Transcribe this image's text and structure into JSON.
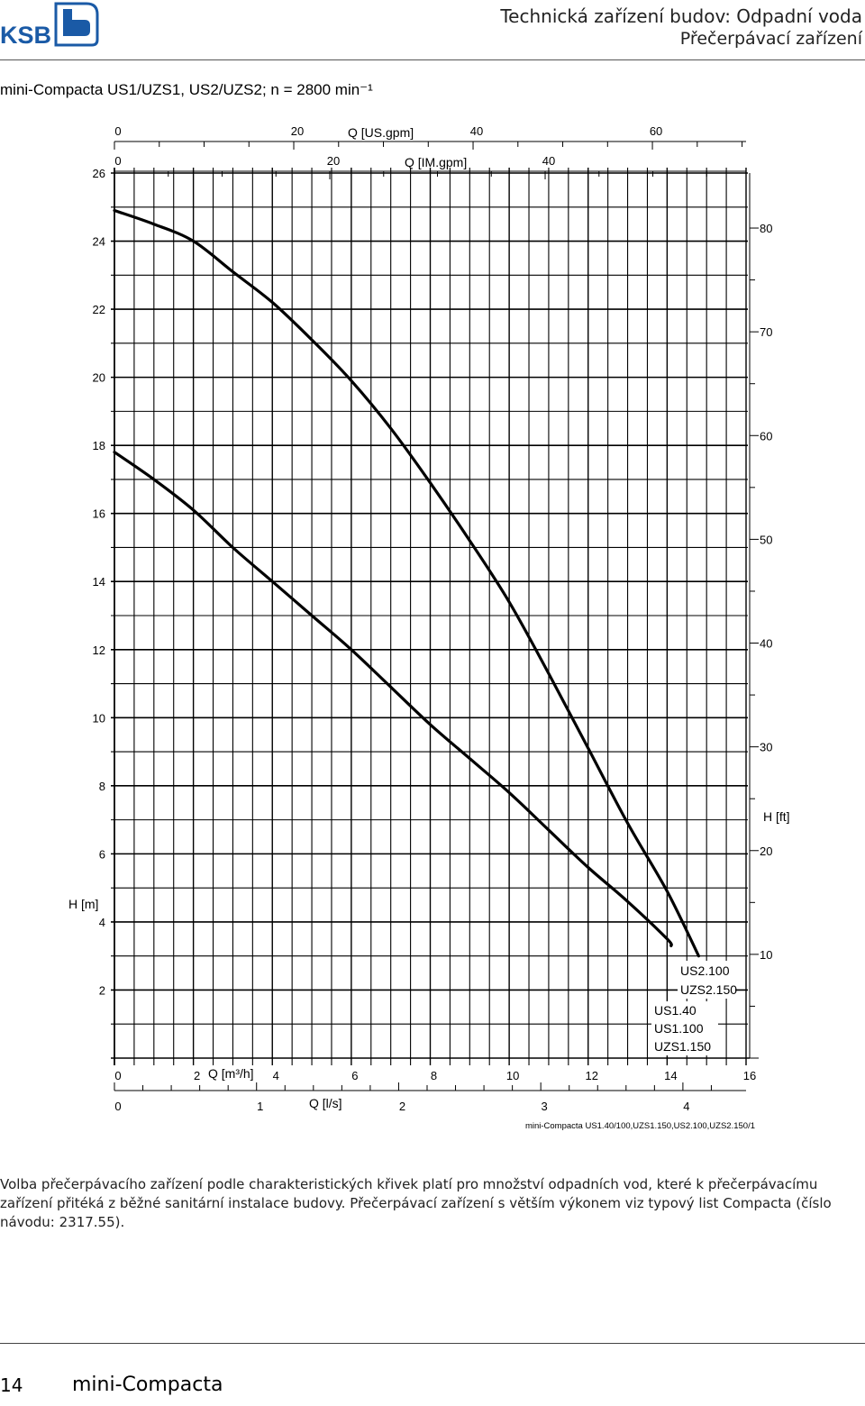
{
  "header": {
    "logo": "KSB",
    "title": "Technická zařízení budov: Odpadní voda",
    "subtitle": "Přečerpávací zařízení"
  },
  "chart_title": "mini-Compacta US1/UZS1, US2/UZS2; n = 2800 min⁻¹",
  "chart_data": {
    "type": "line",
    "x_label": "Q [m³/h]",
    "x_range": [
      0,
      16
    ],
    "x_ticks": [
      0,
      2,
      4,
      6,
      8,
      10,
      12,
      14,
      16
    ],
    "y_label": "H [m]",
    "y_range": [
      0,
      26
    ],
    "y_ticks": [
      2,
      4,
      6,
      8,
      10,
      12,
      14,
      16,
      18,
      20,
      22,
      24,
      26
    ],
    "secondary_axes": {
      "us_gpm": {
        "label": "Q [US.gpm]",
        "ticks": [
          0,
          20,
          40,
          60
        ]
      },
      "im_gpm": {
        "label": "Q [IM.gpm]",
        "ticks": [
          0,
          20,
          40
        ]
      },
      "ls": {
        "label": "Q [l/s]",
        "ticks": [
          0,
          1,
          2,
          3,
          4
        ]
      },
      "ft": {
        "label": "H [ft]",
        "ticks": [
          10,
          20,
          30,
          40,
          50,
          60,
          70,
          80
        ]
      }
    },
    "grid": true,
    "series": [
      {
        "name": "US2.100 / UZS2.150",
        "labels": [
          "US2.100",
          "UZS2.150"
        ],
        "points": [
          [
            0,
            24.9
          ],
          [
            1,
            24.5
          ],
          [
            2,
            24.0
          ],
          [
            3,
            23.1
          ],
          [
            4,
            22.2
          ],
          [
            5,
            21.1
          ],
          [
            6,
            19.9
          ],
          [
            7,
            18.5
          ],
          [
            8,
            16.9
          ],
          [
            9,
            15.2
          ],
          [
            10,
            13.4
          ],
          [
            11,
            11.3
          ],
          [
            12,
            9.1
          ],
          [
            13,
            6.9
          ],
          [
            14,
            4.9
          ],
          [
            14.8,
            3.0
          ]
        ]
      },
      {
        "name": "US1.40 / US1.100 / UZS1.150",
        "labels": [
          "US1.40",
          "US1.100",
          "UZS1.150"
        ],
        "points": [
          [
            0,
            17.8
          ],
          [
            1,
            17.0
          ],
          [
            2,
            16.1
          ],
          [
            3,
            15.0
          ],
          [
            4,
            14.0
          ],
          [
            5,
            13.0
          ],
          [
            6,
            12.0
          ],
          [
            7,
            10.9
          ],
          [
            8,
            9.8
          ],
          [
            9,
            8.8
          ],
          [
            10,
            7.8
          ],
          [
            11,
            6.7
          ],
          [
            12,
            5.6
          ],
          [
            13,
            4.6
          ],
          [
            14,
            3.5
          ],
          [
            14.1,
            3.3
          ]
        ]
      }
    ],
    "note": "mini-Compacta US1.40/100,UZS1.150,US2.100,UZS2.150/1"
  },
  "description": "Volba přečerpávacího zařízení podle charakteristických křivek platí pro množství odpadních vod, které k přečerpávacímu zařízení přitéká z běžné sanitární instalace budovy. Přečerpávací zařízení s větším výkonem viz typový list Compacta (číslo návodu: 2317.55).",
  "footer": {
    "page_number": "14",
    "product": "mini-Compacta"
  },
  "colors": {
    "logo_blue": "#1a5aa6",
    "grid": "#000000",
    "curve": "#000000"
  }
}
